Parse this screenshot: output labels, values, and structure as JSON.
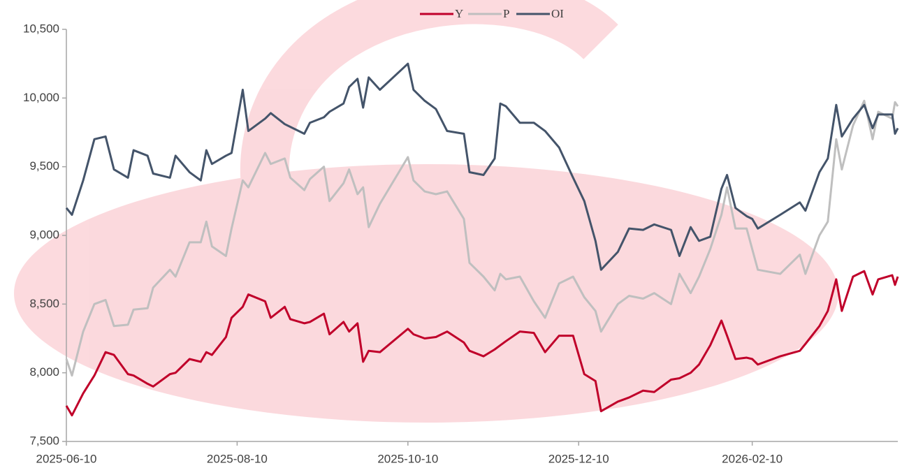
{
  "chart_data": {
    "type": "line",
    "x": [
      "2025-06-10",
      "2025-06-12",
      "2025-06-16",
      "2025-06-20",
      "2025-06-24",
      "2025-06-27",
      "2025-07-02",
      "2025-07-04",
      "2025-07-09",
      "2025-07-11",
      "2025-07-17",
      "2025-07-19",
      "2025-07-24",
      "2025-07-28",
      "2025-07-30",
      "2025-08-01",
      "2025-08-06",
      "2025-08-08",
      "2025-08-12",
      "2025-08-14",
      "2025-08-20",
      "2025-08-22",
      "2025-08-27",
      "2025-08-29",
      "2025-09-03",
      "2025-09-05",
      "2025-09-10",
      "2025-09-12",
      "2025-09-17",
      "2025-09-19",
      "2025-09-22",
      "2025-09-24",
      "2025-09-26",
      "2025-09-30",
      "2025-10-10",
      "2025-10-12",
      "2025-10-16",
      "2025-10-20",
      "2025-10-24",
      "2025-10-30",
      "2025-11-01",
      "2025-11-06",
      "2025-11-10",
      "2025-11-12",
      "2025-11-14",
      "2025-11-19",
      "2025-11-24",
      "2025-11-28",
      "2025-12-03",
      "2025-12-08",
      "2025-12-12",
      "2025-12-16",
      "2025-12-18",
      "2025-12-24",
      "2025-12-28",
      "2026-01-02",
      "2026-01-06",
      "2026-01-12",
      "2026-01-15",
      "2026-01-19",
      "2026-01-22",
      "2026-01-26",
      "2026-01-30",
      "2026-02-01",
      "2026-02-04",
      "2026-02-08",
      "2026-02-10",
      "2026-02-12",
      "2026-02-20",
      "2026-02-27",
      "2026-03-01",
      "2026-03-06",
      "2026-03-09",
      "2026-03-12",
      "2026-03-14",
      "2026-03-18",
      "2026-03-22",
      "2026-03-25",
      "2026-03-27",
      "2026-04-01",
      "2026-04-02",
      "2026-04-03"
    ],
    "series": [
      {
        "name": "Y",
        "color": "#c0002a",
        "values": [
          7760,
          7690,
          7850,
          7980,
          8150,
          8130,
          7990,
          7980,
          7920,
          7900,
          7990,
          8000,
          8100,
          8080,
          8150,
          8130,
          8260,
          8400,
          8480,
          8570,
          8520,
          8400,
          8480,
          8390,
          8360,
          8370,
          8430,
          8280,
          8370,
          8300,
          8360,
          8080,
          8160,
          8150,
          8320,
          8280,
          8250,
          8260,
          8300,
          8220,
          8160,
          8120,
          8170,
          8200,
          8230,
          8300,
          8290,
          8150,
          8270,
          8270,
          7990,
          7940,
          7720,
          7790,
          7820,
          7870,
          7860,
          7950,
          7960,
          8000,
          8060,
          8200,
          8380,
          8270,
          8100,
          8110,
          8100,
          8060,
          8120,
          8160,
          8210,
          8340,
          8450,
          8680,
          8450,
          8700,
          8740,
          8570,
          8680,
          8710,
          8640,
          8700
        ]
      },
      {
        "name": "P",
        "color": "#bfbfbf",
        "values": [
          8100,
          7980,
          8300,
          8500,
          8530,
          8340,
          8350,
          8460,
          8470,
          8620,
          8750,
          8700,
          8950,
          8950,
          9100,
          8920,
          8850,
          9050,
          9400,
          9350,
          9600,
          9520,
          9560,
          9420,
          9330,
          9410,
          9500,
          9250,
          9380,
          9480,
          9300,
          9350,
          9060,
          9230,
          9570,
          9400,
          9320,
          9300,
          9320,
          9120,
          8800,
          8700,
          8600,
          8720,
          8680,
          8700,
          8520,
          8400,
          8650,
          8700,
          8550,
          8450,
          8300,
          8500,
          8560,
          8540,
          8580,
          8500,
          8720,
          8580,
          8700,
          8900,
          9150,
          9350,
          9050,
          9050,
          8900,
          8750,
          8720,
          8860,
          8720,
          9000,
          9100,
          9700,
          9480,
          9800,
          9980,
          9700,
          9900,
          9850,
          9970,
          9940
        ]
      },
      {
        "name": "OI",
        "color": "#44546a",
        "values": [
          9200,
          9150,
          9400,
          9700,
          9720,
          9480,
          9420,
          9620,
          9580,
          9450,
          9420,
          9580,
          9460,
          9400,
          9620,
          9520,
          9580,
          9600,
          10060,
          9760,
          9850,
          9890,
          9810,
          9790,
          9740,
          9820,
          9860,
          9900,
          9960,
          10080,
          10140,
          9930,
          10150,
          10060,
          10250,
          10060,
          9980,
          9920,
          9760,
          9740,
          9460,
          9440,
          9560,
          9960,
          9940,
          9820,
          9820,
          9760,
          9640,
          9420,
          9250,
          8960,
          8750,
          8880,
          9050,
          9040,
          9080,
          9040,
          8850,
          9060,
          8960,
          8990,
          9340,
          9440,
          9200,
          9140,
          9120,
          9050,
          9150,
          9240,
          9180,
          9460,
          9560,
          9950,
          9720,
          9850,
          9950,
          9780,
          9880,
          9880,
          9740,
          9780
        ]
      }
    ],
    "xlim": [
      "2025-06-10",
      "2026-04-03"
    ],
    "xticks": [
      "2025-06-10",
      "2025-08-10",
      "2025-10-10",
      "2025-12-10",
      "2026-02-10"
    ],
    "ylim": [
      7500,
      10500
    ],
    "yticks": [
      {
        "value": 7500,
        "label": "7,500"
      },
      {
        "value": 8000,
        "label": "8,000"
      },
      {
        "value": 8500,
        "label": "8,500"
      },
      {
        "value": 9000,
        "label": "9,000"
      },
      {
        "value": 9500,
        "label": "9,500"
      },
      {
        "value": 10000,
        "label": "10,000"
      },
      {
        "value": 10500,
        "label": "10,500"
      }
    ],
    "grid": false,
    "legend": "top"
  }
}
